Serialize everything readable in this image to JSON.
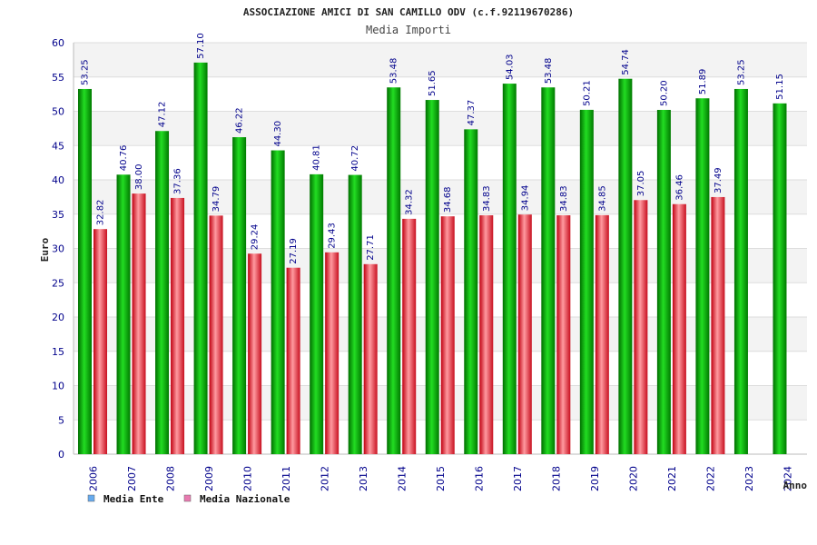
{
  "chart_data": {
    "type": "bar",
    "title": "ASSOCIAZIONE AMICI DI SAN CAMILLO ODV (c.f.92119670286)",
    "subtitle": "Media Importi",
    "xlabel": "Anno",
    "ylabel": "Euro",
    "ylim": [
      0,
      60
    ],
    "yticks": [
      0,
      5,
      10,
      15,
      20,
      25,
      30,
      35,
      40,
      45,
      50,
      55,
      60
    ],
    "grid": true,
    "legend_position": "bottom-left",
    "categories": [
      "2006",
      "2007",
      "2008",
      "2009",
      "2010",
      "2011",
      "2012",
      "2013",
      "2014",
      "2015",
      "2016",
      "2017",
      "2018",
      "2019",
      "2020",
      "2021",
      "2022",
      "2023",
      "2024"
    ],
    "series": [
      {
        "name": "Media Ente",
        "color": "#00aa00",
        "legend_color": "#66aaee",
        "values": [
          53.25,
          40.76,
          47.12,
          57.1,
          46.22,
          44.3,
          40.81,
          40.72,
          53.48,
          51.65,
          47.37,
          54.03,
          53.48,
          50.21,
          54.74,
          50.2,
          51.89,
          53.25,
          51.15
        ],
        "labels": [
          "53.25",
          "40.76",
          "47.12",
          "57.10",
          "46.22",
          "44.30",
          "40.81",
          "40.72",
          "53.48",
          "51.65",
          "47.37",
          "54.03",
          "53.48",
          "50.21",
          "54.74",
          "50.20",
          "51.89",
          "53.25",
          "51.15"
        ]
      },
      {
        "name": "Media Nazionale",
        "color": "#e8202a",
        "legend_color": "#e87ab0",
        "values": [
          32.82,
          38.0,
          37.36,
          34.79,
          29.24,
          27.19,
          29.43,
          27.71,
          34.32,
          34.68,
          34.83,
          34.94,
          34.83,
          34.85,
          37.05,
          36.46,
          37.49,
          null,
          null
        ],
        "labels": [
          "32.82",
          "38.00",
          "37.36",
          "34.79",
          "29.24",
          "27.19",
          "29.43",
          "27.71",
          "34.32",
          "34.68",
          "34.83",
          "34.94",
          "34.83",
          "34.85",
          "37.05",
          "36.46",
          "37.49",
          null,
          null
        ]
      }
    ]
  }
}
